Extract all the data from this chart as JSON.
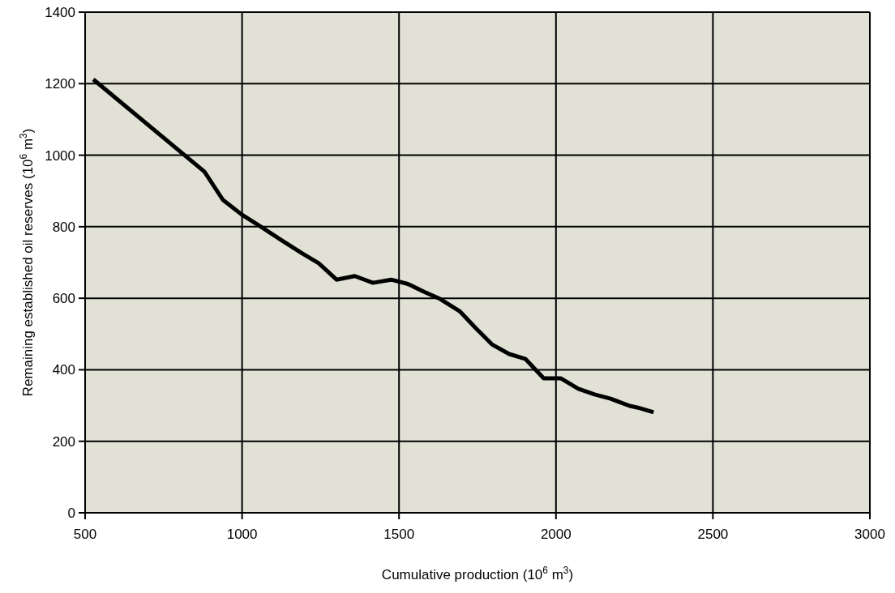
{
  "chart_data": {
    "type": "line",
    "xlabel": "Cumulative production (10$^{6}$ m$^{3}$)",
    "ylabel": "Remaining established oil reserves (10$^{6}$ m$^{3}$)",
    "xlim": [
      500,
      3000
    ],
    "xticks": [
      500,
      1000,
      1500,
      2000,
      2500,
      3000
    ],
    "ylim": [
      0,
      1400
    ],
    "yticks": [
      0,
      200,
      400,
      600,
      800,
      1000,
      1200,
      1400
    ],
    "grid": true,
    "series": [
      {
        "color": "#000000",
        "x": [
          526,
          880,
          939,
          999,
          1060,
          1128,
          1192,
          1244,
          1301,
          1359,
          1417,
          1475,
          1528,
          1580,
          1631,
          1693,
          1745,
          1796,
          1851,
          1903,
          1961,
          2016,
          2071,
          2123,
          2174,
          2235,
          2261,
          2311
        ],
        "values": [
          1212,
          954,
          875,
          834,
          800,
          761,
          725,
          698,
          652,
          662,
          643,
          652,
          640,
          618,
          598,
          564,
          516,
          471,
          444,
          430,
          376,
          376,
          347,
          331,
          319,
          299,
          294,
          281
        ]
      }
    ]
  }
}
